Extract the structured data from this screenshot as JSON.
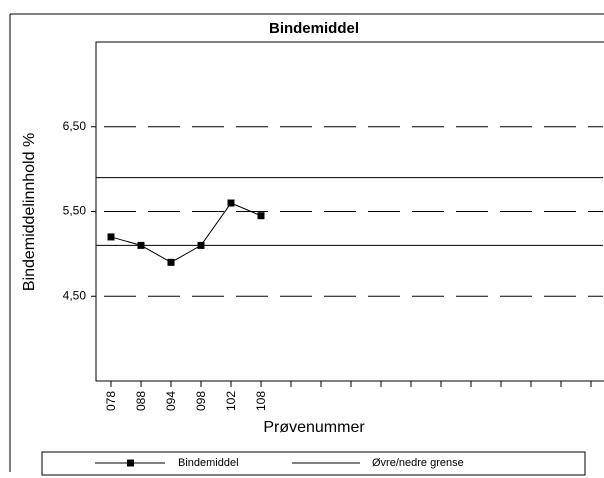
{
  "chart_data": {
    "type": "line",
    "title": "Bindemiddel",
    "x_label": "Prøvenummer",
    "y_label": "Bindemiddelinnhold %",
    "categories": [
      "078",
      "088",
      "094",
      "098",
      "102",
      "108",
      null,
      null,
      null,
      null,
      null,
      null,
      null,
      null,
      null,
      null,
      null
    ],
    "series": [
      {
        "name": "Bindemiddel",
        "color": "#000000",
        "values": [
          5.2,
          5.1,
          4.9,
          5.1,
          5.6,
          5.45,
          null,
          null,
          null,
          null,
          null,
          null,
          null,
          null,
          null,
          null,
          null
        ]
      }
    ],
    "limit_lines": {
      "name": "Øvre/nedre grense",
      "color": "#000000",
      "values": [
        5.1,
        5.9
      ]
    },
    "ylim": [
      3.5,
      7.5
    ],
    "yticks": [
      {
        "value": 4.5,
        "label": "4,50"
      },
      {
        "value": 5.5,
        "label": "5,50"
      },
      {
        "value": 6.5,
        "label": "6,50"
      }
    ],
    "grid": true
  }
}
